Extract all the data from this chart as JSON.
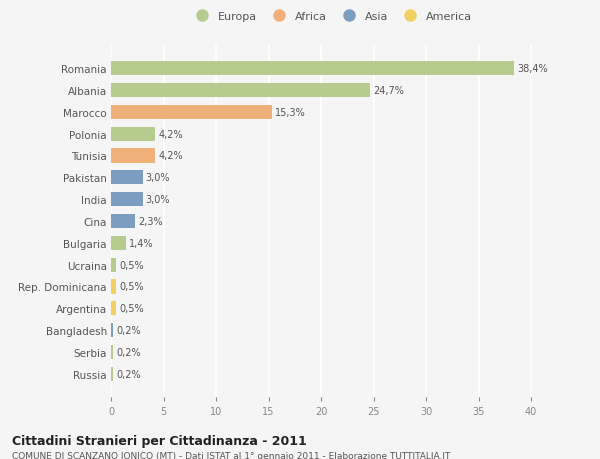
{
  "countries": [
    "Romania",
    "Albania",
    "Marocco",
    "Polonia",
    "Tunisia",
    "Pakistan",
    "India",
    "Cina",
    "Bulgaria",
    "Ucraina",
    "Rep. Dominicana",
    "Argentina",
    "Bangladesh",
    "Serbia",
    "Russia"
  ],
  "values": [
    38.4,
    24.7,
    15.3,
    4.2,
    4.2,
    3.0,
    3.0,
    2.3,
    1.4,
    0.5,
    0.5,
    0.5,
    0.2,
    0.2,
    0.2
  ],
  "labels": [
    "38,4%",
    "24,7%",
    "15,3%",
    "4,2%",
    "4,2%",
    "3,0%",
    "3,0%",
    "2,3%",
    "1,4%",
    "0,5%",
    "0,5%",
    "0,5%",
    "0,2%",
    "0,2%",
    "0,2%"
  ],
  "continents": [
    "Europa",
    "Europa",
    "Africa",
    "Europa",
    "Africa",
    "Asia",
    "Asia",
    "Asia",
    "Europa",
    "Europa",
    "America",
    "America",
    "Asia",
    "Europa",
    "Europa"
  ],
  "colors": {
    "Europa": "#b5cc8e",
    "Africa": "#f0b07a",
    "Asia": "#7b9dc0",
    "America": "#f0d060"
  },
  "bg_color": "#f5f5f5",
  "grid_color": "#ffffff",
  "title": "Cittadini Stranieri per Cittadinanza - 2011",
  "subtitle": "COMUNE DI SCANZANO JONICO (MT) - Dati ISTAT al 1° gennaio 2011 - Elaborazione TUTTITALIA.IT",
  "xlim": [
    0,
    42
  ],
  "xticks": [
    0,
    5,
    10,
    15,
    20,
    25,
    30,
    35,
    40
  ],
  "legend_order": [
    "Europa",
    "Africa",
    "Asia",
    "America"
  ]
}
